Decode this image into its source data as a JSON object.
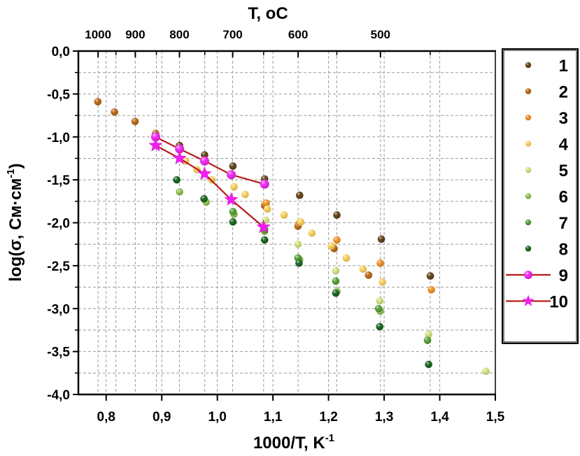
{
  "chart_data": {
    "type": "scatter",
    "title": "",
    "xlabel": "1000/T, K",
    "xlabel_sup": "-1",
    "ylabel": "log(σ, См·см",
    "ylabel_sup": "-1",
    "ylabel_close": ")",
    "top_axis_label": "T, ",
    "top_axis_unit": "oC",
    "xlim": [
      0.75,
      1.5
    ],
    "ylim": [
      -4.0,
      0.0
    ],
    "x_ticks": [
      0.8,
      0.9,
      1.0,
      1.1,
      1.2,
      1.3,
      1.4,
      1.5
    ],
    "x_tick_labels": [
      "0,8",
      "0,9",
      "1,0",
      "1,1",
      "1,2",
      "1,3",
      "1,4",
      "1,5"
    ],
    "y_ticks": [
      0.0,
      -0.5,
      -1.0,
      -1.5,
      -2.0,
      -2.5,
      -3.0,
      -3.5,
      -4.0
    ],
    "y_tick_labels": [
      "0,0",
      "-0,5",
      "-1,0",
      "-1,5",
      "-2,0",
      "-2,5",
      "-3,0",
      "-3,5",
      "-4,0"
    ],
    "top_ticks_celsius": [
      1000,
      900,
      800,
      700,
      600,
      500
    ],
    "top_tick_labels": [
      "1000",
      "900",
      "800",
      "700",
      "600",
      "500"
    ],
    "top_minor_ticks_celsius": [
      950,
      850,
      750,
      650,
      550,
      450
    ],
    "grid": true,
    "legend_position": "right",
    "series": [
      {
        "name": "1",
        "color": "#5a3a0e",
        "marker": "circle",
        "line": false,
        "x": [
          0.889,
          0.932,
          0.977,
          1.028,
          1.085,
          1.148,
          1.215,
          1.295,
          1.383
        ],
        "y": [
          -0.97,
          -1.1,
          -1.21,
          -1.34,
          -1.49,
          -1.68,
          -1.91,
          -2.19,
          -2.62
        ]
      },
      {
        "name": "2",
        "color": "#b5620f",
        "marker": "circle",
        "line": false,
        "x": [
          0.785,
          0.815,
          0.852,
          0.889,
          0.977,
          1.085,
          1.145,
          1.21,
          1.272
        ],
        "y": [
          -0.59,
          -0.71,
          -0.82,
          -0.96,
          -1.27,
          -1.8,
          -2.04,
          -2.3,
          -2.61
        ]
      },
      {
        "name": "3",
        "color": "#f08c1e",
        "marker": "circle",
        "line": false,
        "x": [
          1.088,
          1.148,
          1.215,
          1.293,
          1.385
        ],
        "y": [
          -1.77,
          -2.0,
          -2.2,
          -2.47,
          -2.78
        ]
      },
      {
        "name": "4",
        "color": "#f8cf56",
        "marker": "circle",
        "line": false,
        "x": [
          0.943,
          0.963,
          0.99,
          1.03,
          1.05,
          1.09,
          1.12,
          1.15,
          1.17,
          1.205,
          1.232,
          1.262,
          1.297
        ],
        "y": [
          -1.28,
          -1.38,
          -1.5,
          -1.58,
          -1.67,
          -1.84,
          -1.91,
          -1.99,
          -2.12,
          -2.27,
          -2.41,
          -2.54,
          -2.69
        ]
      },
      {
        "name": "5",
        "color": "#cfe27a",
        "marker": "circle",
        "line": false,
        "x": [
          1.087,
          1.145,
          1.213,
          1.292,
          1.38,
          1.483
        ],
        "y": [
          -1.97,
          -2.25,
          -2.56,
          -2.91,
          -3.3,
          -3.73
        ]
      },
      {
        "name": "6",
        "color": "#8cbf4a",
        "marker": "circle",
        "line": false,
        "x": [
          0.932,
          0.98,
          1.03,
          1.085,
          1.148,
          1.215,
          1.293
        ],
        "y": [
          -1.64,
          -1.76,
          -1.9,
          -2.1,
          -2.43,
          -2.8,
          -3.03
        ]
      },
      {
        "name": "7",
        "color": "#4e9a2e",
        "marker": "circle",
        "line": false,
        "x": [
          1.028,
          1.085,
          1.145,
          1.213,
          1.29,
          1.378
        ],
        "y": [
          -1.87,
          -2.08,
          -2.41,
          -2.68,
          -3.0,
          -3.37
        ]
      },
      {
        "name": "8",
        "color": "#0f5e14",
        "marker": "circle",
        "line": false,
        "x": [
          0.927,
          0.976,
          1.028,
          1.085,
          1.147,
          1.213,
          1.292,
          1.38
        ],
        "y": [
          -1.5,
          -1.72,
          -1.99,
          -2.2,
          -2.47,
          -2.82,
          -3.21,
          -3.65
        ]
      },
      {
        "name": "9",
        "color": "#f01ef0",
        "line_color": "#b81c1c",
        "marker": "circle",
        "line": true,
        "x": [
          0.889,
          0.932,
          0.977,
          1.025,
          1.085
        ],
        "y": [
          -1.0,
          -1.14,
          -1.28,
          -1.44,
          -1.55
        ]
      },
      {
        "name": "10",
        "color": "#f01ef0",
        "line_color": "#b81c1c",
        "marker": "star",
        "line": true,
        "x": [
          0.889,
          0.932,
          0.977,
          1.025,
          1.083
        ],
        "y": [
          -1.1,
          -1.25,
          -1.43,
          -1.73,
          -2.05
        ]
      }
    ]
  }
}
